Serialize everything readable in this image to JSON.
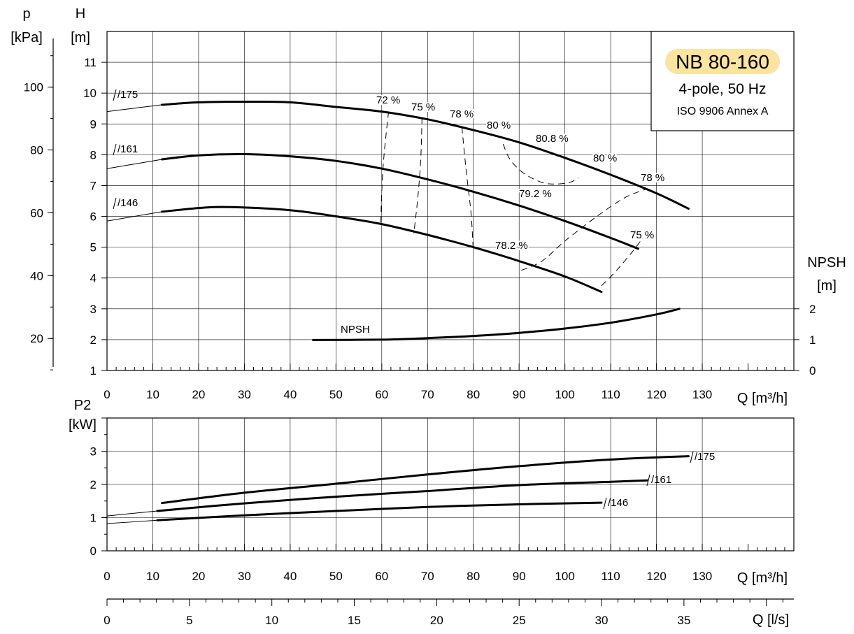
{
  "chart_data": [
    {
      "type": "line",
      "name": "head",
      "xlabel": "Q [m³/h]",
      "ylabel": "H",
      "ylabel_unit": "[m]",
      "left_axis_label": "p",
      "left_axis_unit": "[kPa]",
      "npsh_axis_label": "NPSH",
      "npsh_axis_unit": "[m]",
      "xlim": [
        0,
        150
      ],
      "ylim": [
        1,
        12
      ],
      "x_ticks": [
        0,
        10,
        20,
        30,
        40,
        50,
        60,
        70,
        80,
        90,
        100,
        110,
        120,
        130
      ],
      "y_ticks": [
        1,
        2,
        3,
        4,
        5,
        6,
        7,
        8,
        9,
        10,
        11
      ],
      "kpa_ticks": [
        20,
        40,
        60,
        80,
        100
      ],
      "npsh_ticks": [
        0,
        1,
        2
      ],
      "grid": true,
      "series": [
        {
          "name": "/175",
          "label": "/175",
          "x": [
            0,
            12,
            20,
            30,
            40,
            50,
            60,
            70,
            80,
            90,
            100,
            110,
            120,
            127
          ],
          "y": [
            9.4,
            9.62,
            9.7,
            9.72,
            9.7,
            9.55,
            9.4,
            9.15,
            8.8,
            8.4,
            7.9,
            7.35,
            6.75,
            6.25
          ]
        },
        {
          "name": "/161",
          "label": "/161",
          "x": [
            0,
            12,
            20,
            30,
            40,
            50,
            60,
            70,
            80,
            90,
            100,
            110,
            116
          ],
          "y": [
            7.55,
            7.85,
            7.98,
            8.02,
            7.95,
            7.8,
            7.55,
            7.2,
            6.8,
            6.35,
            5.85,
            5.3,
            4.95
          ]
        },
        {
          "name": "/146",
          "label": "/146",
          "x": [
            0,
            12,
            20,
            27,
            40,
            50,
            60,
            70,
            80,
            90,
            100,
            108
          ],
          "y": [
            5.85,
            6.15,
            6.27,
            6.3,
            6.2,
            6.0,
            5.75,
            5.4,
            5.0,
            4.55,
            4.05,
            3.55
          ]
        },
        {
          "name": "NPSH",
          "label": "NPSH",
          "x": [
            45,
            60,
            70,
            80,
            90,
            100,
            110,
            120,
            125
          ],
          "y_npsh": [
            0.99,
            1.0,
            1.05,
            1.12,
            1.22,
            1.36,
            1.55,
            1.82,
            2.0
          ]
        }
      ],
      "efficiency_labels": [
        "72 %",
        "75 %",
        "78 %",
        "80 %",
        "80.8 %",
        "80 %",
        "78 %",
        "79.2 %",
        "75 %",
        "78.2 %"
      ],
      "efficiency_contours": [
        {
          "label": "72 %",
          "x": [
            61.5,
            60.5,
            60,
            59.8
          ],
          "y": [
            9.4,
            8.0,
            6.8,
            5.75
          ]
        },
        {
          "label": "75 %",
          "x": [
            68.8,
            68.5,
            67.8,
            67
          ],
          "y": [
            9.2,
            7.8,
            6.5,
            5.45
          ]
        },
        {
          "label": "78 %",
          "x": [
            77.5,
            78.5,
            79.5,
            80
          ],
          "y": [
            8.9,
            7.4,
            6.1,
            4.85
          ]
        },
        {
          "label": "80.8 %",
          "x": [
            86.5,
            88,
            91,
            95,
            98,
            101,
            103
          ],
          "y": [
            8.35,
            7.85,
            7.4,
            7.1,
            7.05,
            7.1,
            7.25
          ]
        },
        {
          "label": "78 %",
          "x": [
            90.5,
            95,
            100,
            107,
            113,
            118
          ],
          "y": [
            4.25,
            4.55,
            5.2,
            6.0,
            6.6,
            6.9
          ]
        },
        {
          "label": "75 %",
          "x": [
            108,
            111,
            115,
            117
          ],
          "y": [
            3.75,
            4.2,
            4.9,
            5.3
          ]
        }
      ],
      "info_box": {
        "title": "NB 80-160",
        "subtitle": "4-pole, 50 Hz",
        "standard": "ISO 9906 Annex A",
        "highlight_color": "#fbe3a0"
      }
    },
    {
      "type": "line",
      "name": "power",
      "xlabel": "Q [m³/h]",
      "ylabel": "P2",
      "ylabel_unit": "[kW]",
      "xlim": [
        0,
        150
      ],
      "ylim": [
        0,
        4
      ],
      "x_ticks": [
        0,
        10,
        20,
        30,
        40,
        50,
        60,
        70,
        80,
        90,
        100,
        110,
        120,
        130
      ],
      "y_ticks": [
        0,
        1,
        2,
        3
      ],
      "series": [
        {
          "name": "/175",
          "label": "/175",
          "x": [
            0,
            12,
            30,
            50,
            70,
            90,
            110,
            127
          ],
          "y": [
            null,
            1.44,
            1.75,
            2.02,
            2.3,
            2.55,
            2.75,
            2.85
          ]
        },
        {
          "name": "/161",
          "label": "/161",
          "x": [
            0,
            11,
            30,
            50,
            70,
            90,
            110,
            118
          ],
          "y": [
            1.05,
            1.2,
            1.43,
            1.63,
            1.8,
            1.98,
            2.08,
            2.12
          ]
        },
        {
          "name": "/146",
          "label": "/146",
          "x": [
            0,
            11,
            30,
            50,
            70,
            90,
            108
          ],
          "y": [
            0.82,
            0.92,
            1.07,
            1.2,
            1.32,
            1.4,
            1.45
          ]
        }
      ]
    },
    {
      "type": "axis",
      "name": "flow-ls",
      "xlabel": "Q [l/s]",
      "xlim": [
        0,
        41.67
      ],
      "x_ticks": [
        0,
        5,
        10,
        15,
        20,
        25,
        30,
        35
      ]
    }
  ]
}
